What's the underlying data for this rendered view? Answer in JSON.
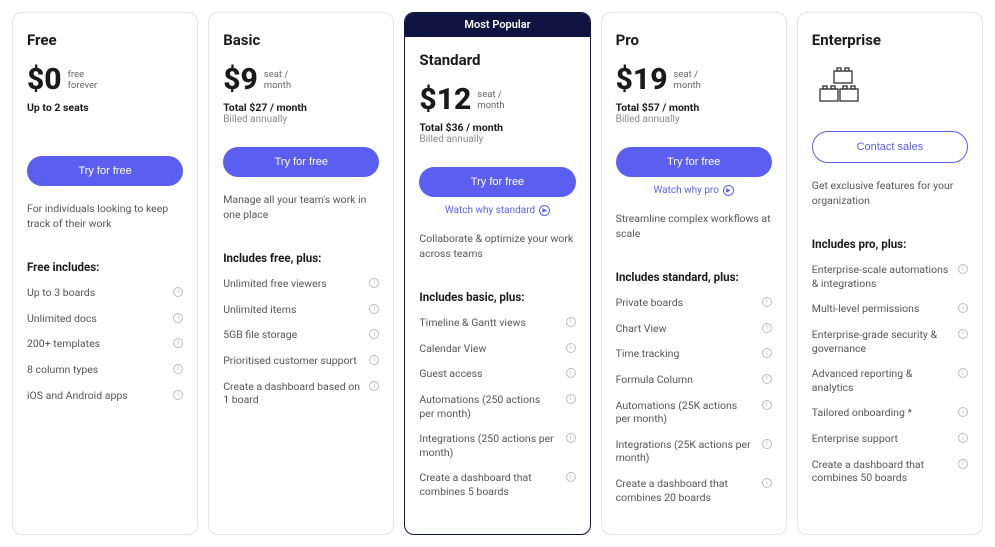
{
  "popular_badge": "Most Popular",
  "colors": {
    "primary": "#5a5fef",
    "badge_bg": "#0f1440",
    "text_dark": "#1a1a1a",
    "text_muted": "#666666",
    "border": "#e5e5e5"
  },
  "plans": {
    "free": {
      "name": "Free",
      "price": "$0",
      "price_label_1": "free",
      "price_label_2": "forever",
      "seats": "Up to 2 seats",
      "cta": "Try for free",
      "description": "For individuals looking to keep track of their work",
      "includes_title": "Free includes:",
      "features": [
        "Up to 3 boards",
        "Unlimited docs",
        "200+ templates",
        "8 column types",
        "iOS and Android apps"
      ]
    },
    "basic": {
      "name": "Basic",
      "price": "$9",
      "price_label_1": "seat /",
      "price_label_2": "month",
      "total": "Total $27 / month",
      "billed": "Billed annually",
      "cta": "Try for free",
      "description": "Manage all your team's work in one place",
      "includes_title": "Includes free, plus:",
      "features": [
        "Unlimited free viewers",
        "Unlimited items",
        "5GB file storage",
        "Prioritised customer support",
        "Create a dashboard based on 1 board"
      ]
    },
    "standard": {
      "name": "Standard",
      "price": "$12",
      "price_label_1": "seat /",
      "price_label_2": "month",
      "total": "Total $36 / month",
      "billed": "Billed annually",
      "cta": "Try for free",
      "watch": "Watch why standard",
      "description": "Collaborate & optimize your work across teams",
      "includes_title": "Includes basic, plus:",
      "features": [
        "Timeline & Gantt views",
        "Calendar View",
        "Guest access",
        "Automations (250 actions per month)",
        "Integrations (250 actions per month)",
        "Create a dashboard that combines 5 boards"
      ]
    },
    "pro": {
      "name": "Pro",
      "price": "$19",
      "price_label_1": "seat /",
      "price_label_2": "month",
      "total": "Total $57 / month",
      "billed": "Billed annually",
      "cta": "Try for free",
      "watch": "Watch why pro",
      "description": "Streamline complex workflows at scale",
      "includes_title": "Includes standard, plus:",
      "features": [
        "Private boards",
        "Chart View",
        "Time tracking",
        "Formula Column",
        "Automations (25K actions per month)",
        "Integrations (25K actions per month)",
        "Create a dashboard that combines 20 boards"
      ]
    },
    "enterprise": {
      "name": "Enterprise",
      "cta": "Contact sales",
      "description": "Get exclusive features for your organization",
      "includes_title": "Includes pro, plus:",
      "features": [
        "Enterprise-scale automations & integrations",
        "Multi-level permissions",
        "Enterprise-grade security & governance",
        "Advanced reporting & analytics",
        "Tailored onboarding *",
        "Enterprise support",
        "Create a dashboard that combines 50 boards"
      ]
    }
  }
}
